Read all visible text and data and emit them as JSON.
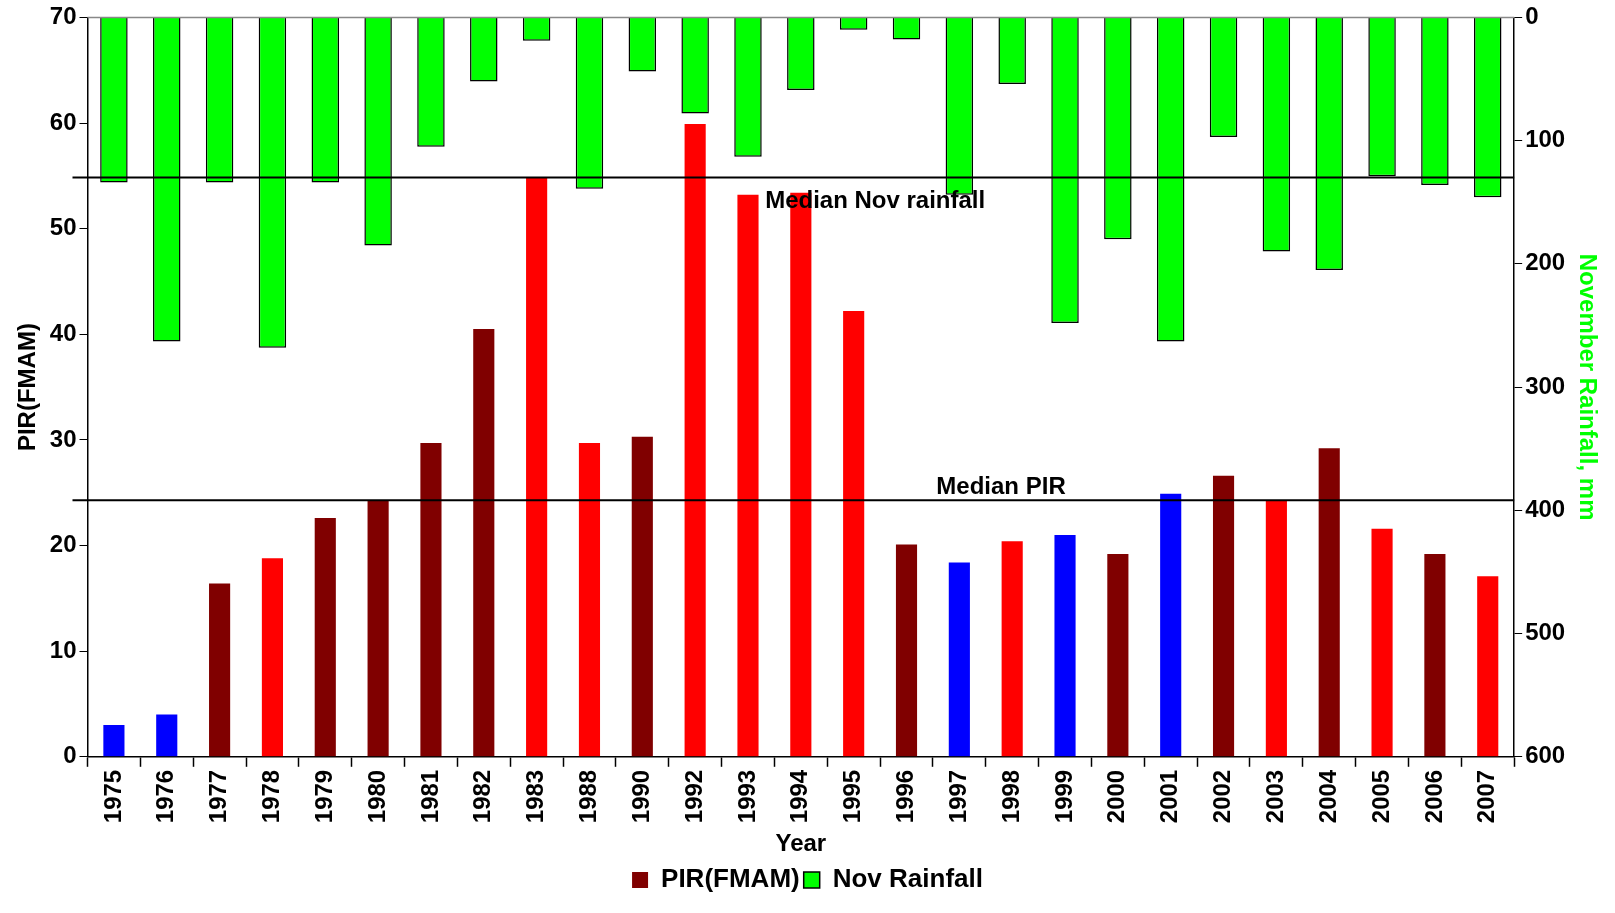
{
  "chart_data": {
    "type": "bar",
    "xlabel": "Year",
    "ylabel": "PIR(FMAM)",
    "y2label": "November Rainfall, mm",
    "categories": [
      "1975",
      "1976",
      "1977",
      "1978",
      "1979",
      "1980",
      "1981",
      "1982",
      "1983",
      "1988",
      "1990",
      "1992",
      "1993",
      "1994",
      "1995",
      "1996",
      "1997",
      "1998",
      "1999",
      "2000",
      "2001",
      "2002",
      "2003",
      "2004",
      "2005",
      "2006",
      "2007"
    ],
    "series": [
      {
        "name": "PIR(FMAM)",
        "color": "#800000",
        "colors": [
          "#0000ff",
          "#0000ff",
          "#800000",
          "#ff0000",
          "#800000",
          "#800000",
          "#800000",
          "#800000",
          "#ff0000",
          "#ff0000",
          "#800000",
          "#ff0000",
          "#ff0000",
          "#ff0000",
          "#ff0000",
          "#800000",
          "#0000ff",
          "#ff0000",
          "#0000ff",
          "#800000",
          "#0000ff",
          "#800000",
          "#ff0000",
          "#800000",
          "#ff0000",
          "#800000",
          "#ff0000"
        ],
        "values": [
          3.0,
          4.0,
          16.4,
          18.8,
          22.6,
          24.3,
          29.7,
          40.5,
          54.8,
          29.7,
          30.3,
          59.9,
          53.2,
          53.4,
          42.2,
          20.1,
          18.4,
          20.4,
          21.0,
          19.2,
          24.9,
          26.6,
          24.3,
          29.2,
          21.6,
          19.2,
          17.1
        ]
      },
      {
        "name": "Nov Rainfall",
        "color": "#00ff00",
        "axis": "y2",
        "values": [
          134,
          263,
          134,
          268,
          134,
          185,
          105,
          52,
          19,
          139,
          44,
          78,
          113,
          59,
          10,
          18,
          144,
          54,
          248,
          180,
          263,
          97,
          190,
          205,
          129,
          136,
          146
        ]
      }
    ],
    "ylim": [
      0,
      70
    ],
    "yticks": [
      0,
      10,
      20,
      30,
      40,
      50,
      60,
      70
    ],
    "y2lim": [
      600,
      0
    ],
    "y2ticks": [
      0,
      100,
      200,
      300,
      400,
      500,
      600
    ],
    "ref_lines": [
      {
        "axis": "y",
        "value": 24.3,
        "label": "Median PIR"
      },
      {
        "axis": "y2",
        "value": 130,
        "label": "Median Nov rainfall"
      }
    ],
    "legend": "bottom"
  }
}
